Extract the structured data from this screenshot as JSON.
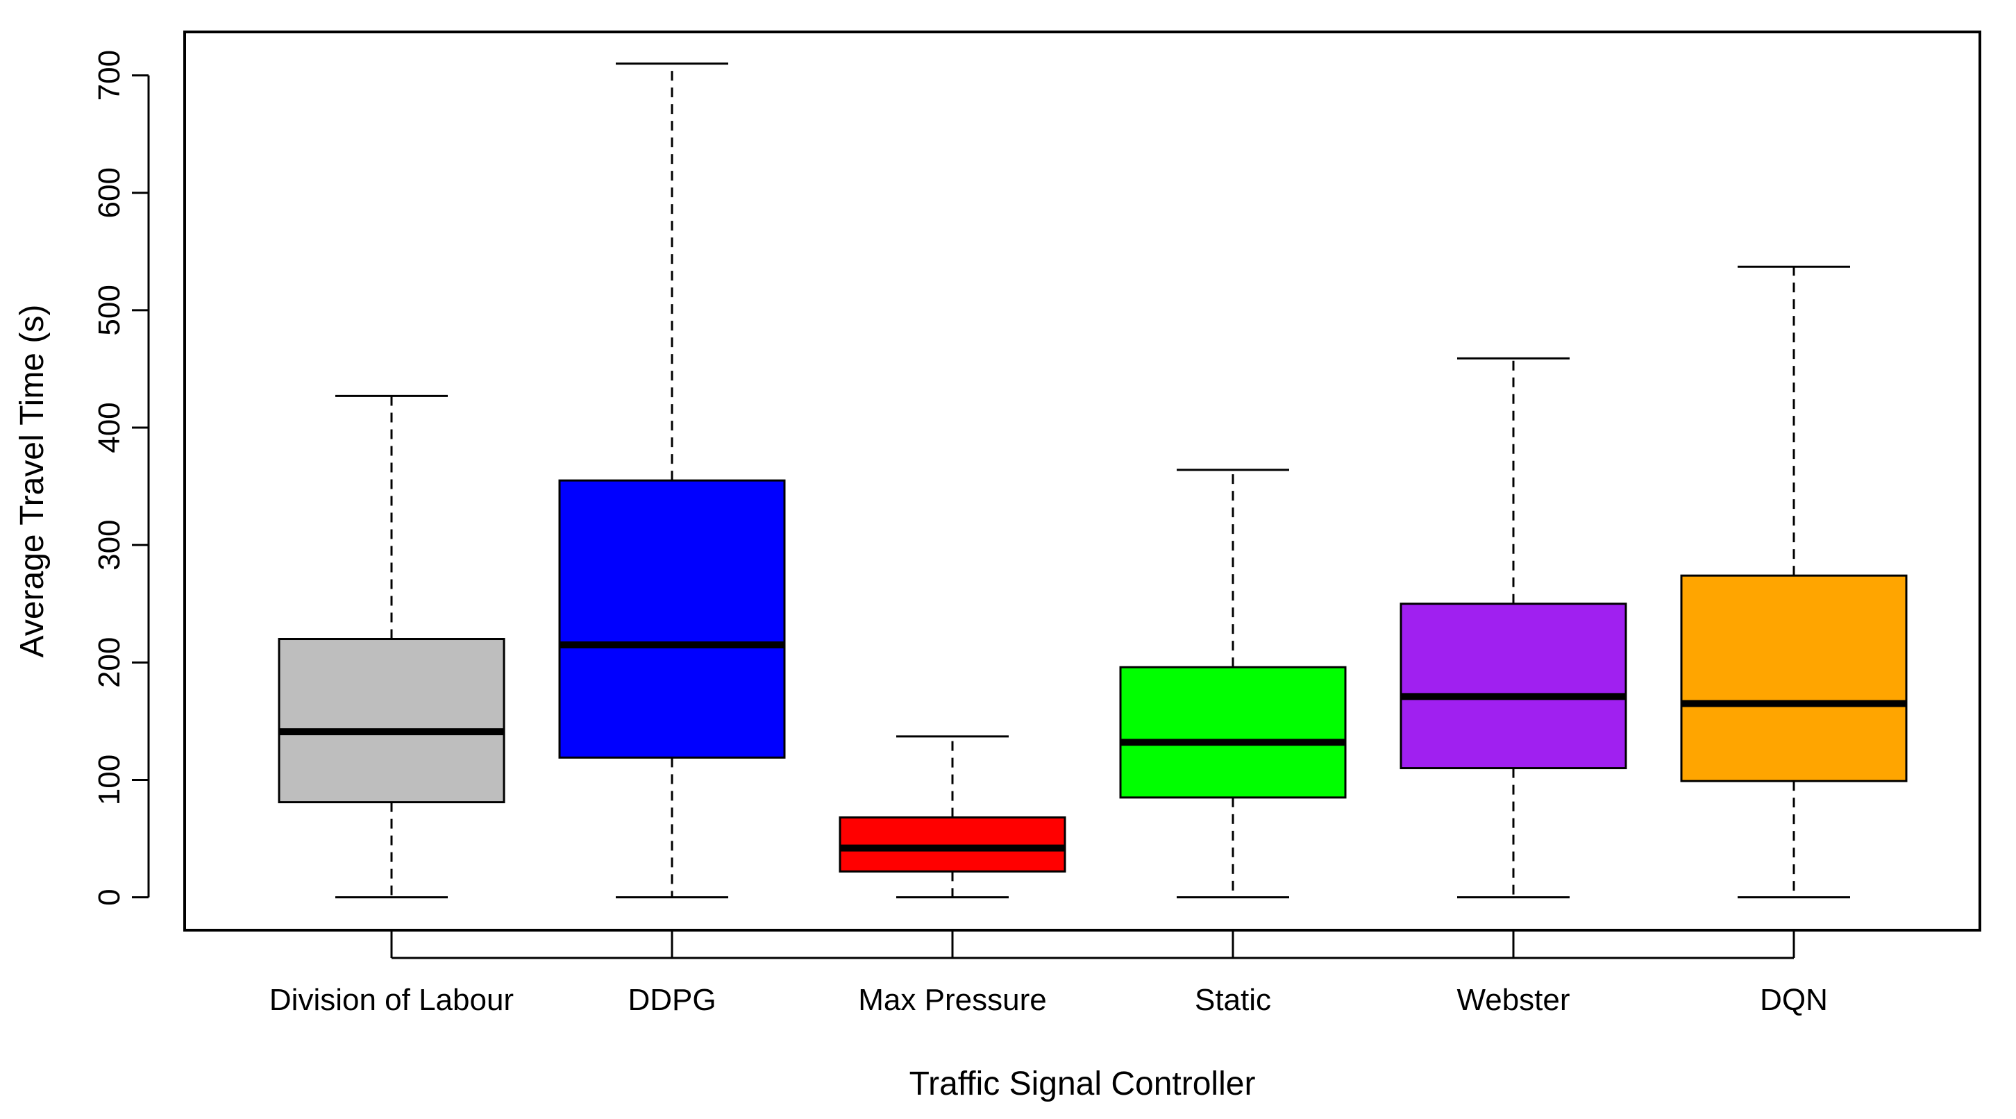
{
  "chart_data": {
    "type": "boxplot",
    "title": "",
    "xlabel": "Traffic Signal Controller",
    "ylabel": "Average Travel Time (s)",
    "ylim": [
      -28,
      737
    ],
    "yticks": [
      0,
      100,
      200,
      300,
      400,
      500,
      600,
      700
    ],
    "ytick_labels": [
      "0",
      "100",
      "200",
      "300",
      "400",
      "500",
      "600",
      "700"
    ],
    "categories": [
      "Division of Labour",
      "DDPG",
      "Max Pressure",
      "Static",
      "Webster",
      "DQN"
    ],
    "boxes": [
      {
        "name": "Division of Labour",
        "whisker_low": 0,
        "q1": 81,
        "median": 141,
        "q3": 220,
        "whisker_high": 427,
        "color": "#bebebe"
      },
      {
        "name": "DDPG",
        "whisker_low": 0,
        "q1": 119,
        "median": 215,
        "q3": 355,
        "whisker_high": 710,
        "color": "#0000ff"
      },
      {
        "name": "Max Pressure",
        "whisker_low": 0,
        "q1": 22,
        "median": 42,
        "q3": 68,
        "whisker_high": 137,
        "color": "#ff0000"
      },
      {
        "name": "Static",
        "whisker_low": 0,
        "q1": 85,
        "median": 132,
        "q3": 196,
        "whisker_high": 364,
        "color": "#00ff00"
      },
      {
        "name": "Webster",
        "whisker_low": 0,
        "q1": 110,
        "median": 171,
        "q3": 250,
        "whisker_high": 459,
        "color": "#a020f0"
      },
      {
        "name": "DQN",
        "whisker_low": 0,
        "q1": 99,
        "median": 165,
        "q3": 274,
        "whisker_high": 537,
        "color": "#ffa500"
      }
    ]
  }
}
